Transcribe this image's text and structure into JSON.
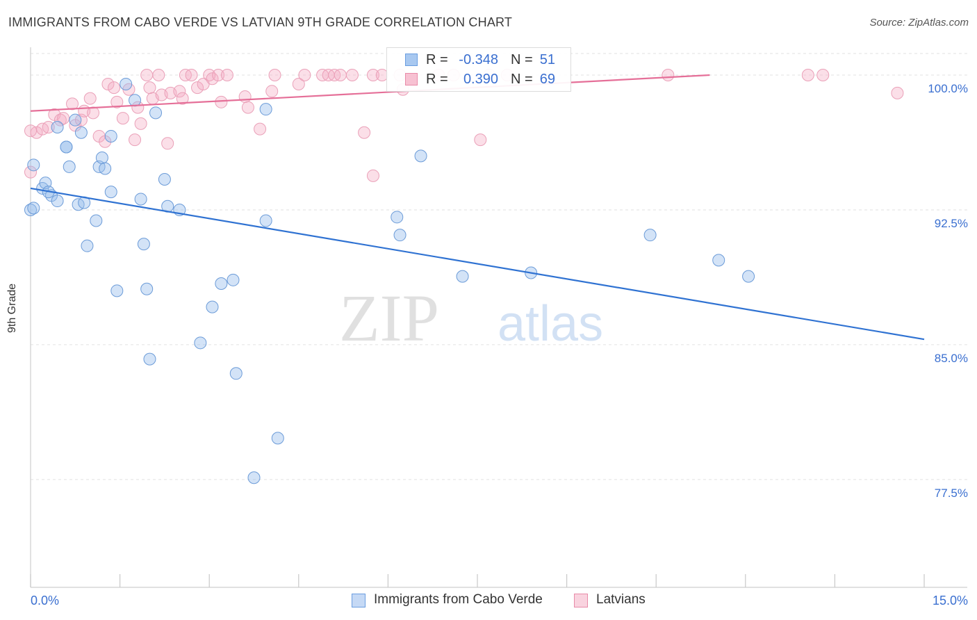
{
  "header": {
    "title": "IMMIGRANTS FROM CABO VERDE VS LATVIAN 9TH GRADE CORRELATION CHART",
    "source": "Source: ZipAtlas.com"
  },
  "watermark": {
    "zip": "ZIP",
    "atlas": "atlas"
  },
  "legend": {
    "rows": [
      {
        "r_label": "R =",
        "r_value": "-0.348",
        "n_label": "N =",
        "n_value": "51",
        "color": "#a8c8f0",
        "border": "#6a9de0",
        "text_color": "#3a6fd0"
      },
      {
        "r_label": "R =",
        "r_value": "0.390",
        "n_label": "N =",
        "n_value": "69",
        "color": "#f7c1d2",
        "border": "#e88aa8",
        "text_color": "#3a6fd0"
      }
    ]
  },
  "bottom_legend": [
    {
      "label": "Immigrants from Cabo Verde",
      "color": "#c5d9f5",
      "border": "#6a9de0"
    },
    {
      "label": "Latvians",
      "color": "#f9d3df",
      "border": "#e88aa8"
    }
  ],
  "colors": {
    "blue_fill": "rgba(150,188,236,0.42)",
    "blue_stroke": "#6b9bd8",
    "blue_line": "#2f72d2",
    "pink_fill": "rgba(245,170,195,0.38)",
    "pink_stroke": "#eaa0b8",
    "pink_line": "#e56f98",
    "tick_label": "#3a6fd0",
    "grid": "#e2e2e2"
  },
  "chart_data": {
    "type": "scatter",
    "title": "IMMIGRANTS FROM CABO VERDE VS LATVIAN 9TH GRADE CORRELATION CHART",
    "xlabel": "",
    "ylabel": "9th Grade",
    "xlim": [
      0,
      15
    ],
    "ylim": [
      71.5,
      101.2
    ],
    "x_tick_labels": [
      "0.0%",
      "15.0%"
    ],
    "y_ticks": [
      77.5,
      85.0,
      92.5,
      100.0
    ],
    "y_tick_labels": [
      "77.5%",
      "85.0%",
      "92.5%",
      "100.0%"
    ],
    "grid": true,
    "legend_position": "top-center",
    "series": [
      {
        "name": "Immigrants from Cabo Verde",
        "trend": {
          "x": [
            0,
            15
          ],
          "y": [
            93.7,
            85.3
          ]
        },
        "points": [
          [
            0.05,
            95.0
          ],
          [
            0.0,
            92.5
          ],
          [
            0.2,
            93.7
          ],
          [
            0.25,
            94.0
          ],
          [
            0.35,
            93.3
          ],
          [
            0.45,
            93.0
          ],
          [
            0.45,
            97.1
          ],
          [
            0.6,
            96.0
          ],
          [
            0.65,
            94.9
          ],
          [
            0.75,
            97.5
          ],
          [
            0.8,
            92.8
          ],
          [
            0.85,
            96.8
          ],
          [
            0.9,
            92.9
          ],
          [
            0.95,
            90.5
          ],
          [
            1.1,
            91.9
          ],
          [
            1.15,
            94.9
          ],
          [
            1.2,
            95.4
          ],
          [
            1.25,
            94.8
          ],
          [
            1.35,
            93.5
          ],
          [
            1.35,
            96.6
          ],
          [
            1.45,
            88.0
          ],
          [
            1.6,
            99.5
          ],
          [
            1.75,
            98.6
          ],
          [
            1.85,
            93.1
          ],
          [
            1.9,
            90.6
          ],
          [
            1.95,
            88.1
          ],
          [
            2.0,
            84.2
          ],
          [
            2.1,
            97.9
          ],
          [
            2.25,
            94.2
          ],
          [
            2.3,
            92.7
          ],
          [
            2.5,
            92.5
          ],
          [
            2.85,
            85.1
          ],
          [
            3.05,
            87.1
          ],
          [
            3.2,
            88.4
          ],
          [
            3.4,
            88.6
          ],
          [
            3.45,
            83.4
          ],
          [
            3.75,
            77.6
          ],
          [
            3.95,
            91.9
          ],
          [
            3.95,
            98.1
          ],
          [
            4.15,
            79.8
          ],
          [
            6.15,
            92.1
          ],
          [
            6.2,
            91.1
          ],
          [
            6.55,
            95.5
          ],
          [
            7.25,
            88.8
          ],
          [
            8.4,
            89.0
          ],
          [
            10.4,
            91.1
          ],
          [
            11.55,
            89.7
          ],
          [
            12.05,
            88.8
          ],
          [
            0.05,
            92.6
          ],
          [
            0.3,
            93.5
          ],
          [
            0.6,
            96.0
          ]
        ]
      },
      {
        "name": "Latvians",
        "trend": {
          "x": [
            0,
            11.4
          ],
          "y": [
            98.0,
            100.0
          ]
        },
        "points": [
          [
            0.0,
            94.6
          ],
          [
            0.1,
            96.8
          ],
          [
            0.2,
            97.0
          ],
          [
            0.3,
            97.1
          ],
          [
            0.4,
            97.8
          ],
          [
            0.5,
            97.5
          ],
          [
            0.55,
            97.6
          ],
          [
            0.7,
            98.4
          ],
          [
            0.75,
            97.2
          ],
          [
            0.85,
            97.5
          ],
          [
            0.9,
            98.0
          ],
          [
            1.0,
            98.7
          ],
          [
            1.05,
            97.9
          ],
          [
            1.15,
            96.6
          ],
          [
            1.25,
            96.3
          ],
          [
            1.3,
            99.5
          ],
          [
            1.4,
            99.3
          ],
          [
            1.45,
            98.5
          ],
          [
            1.55,
            97.6
          ],
          [
            1.65,
            99.2
          ],
          [
            1.75,
            96.4
          ],
          [
            1.8,
            98.2
          ],
          [
            1.85,
            97.3
          ],
          [
            1.95,
            100.0
          ],
          [
            2.0,
            99.3
          ],
          [
            2.05,
            98.7
          ],
          [
            2.15,
            100.0
          ],
          [
            2.2,
            98.9
          ],
          [
            2.3,
            96.2
          ],
          [
            2.35,
            99.0
          ],
          [
            2.5,
            99.1
          ],
          [
            2.55,
            98.7
          ],
          [
            2.6,
            100.0
          ],
          [
            2.7,
            100.0
          ],
          [
            2.8,
            99.3
          ],
          [
            2.9,
            99.5
          ],
          [
            3.0,
            100.0
          ],
          [
            3.05,
            99.8
          ],
          [
            3.15,
            100.0
          ],
          [
            3.2,
            98.5
          ],
          [
            3.3,
            100.0
          ],
          [
            3.6,
            98.8
          ],
          [
            3.65,
            98.2
          ],
          [
            3.85,
            97.0
          ],
          [
            4.05,
            99.1
          ],
          [
            4.1,
            100.0
          ],
          [
            4.5,
            99.5
          ],
          [
            4.6,
            100.0
          ],
          [
            4.9,
            100.0
          ],
          [
            5.0,
            100.0
          ],
          [
            5.1,
            100.0
          ],
          [
            5.2,
            100.0
          ],
          [
            5.4,
            100.0
          ],
          [
            5.75,
            100.0
          ],
          [
            5.6,
            96.8
          ],
          [
            5.75,
            94.4
          ],
          [
            5.9,
            100.0
          ],
          [
            6.2,
            100.0
          ],
          [
            6.25,
            99.2
          ],
          [
            6.85,
            100.0
          ],
          [
            7.1,
            100.0
          ],
          [
            7.55,
            96.4
          ],
          [
            7.7,
            100.0
          ],
          [
            8.0,
            100.0
          ],
          [
            10.7,
            100.0
          ],
          [
            13.05,
            100.0
          ],
          [
            13.3,
            100.0
          ],
          [
            14.55,
            99.0
          ],
          [
            0.0,
            96.9
          ]
        ]
      }
    ]
  }
}
